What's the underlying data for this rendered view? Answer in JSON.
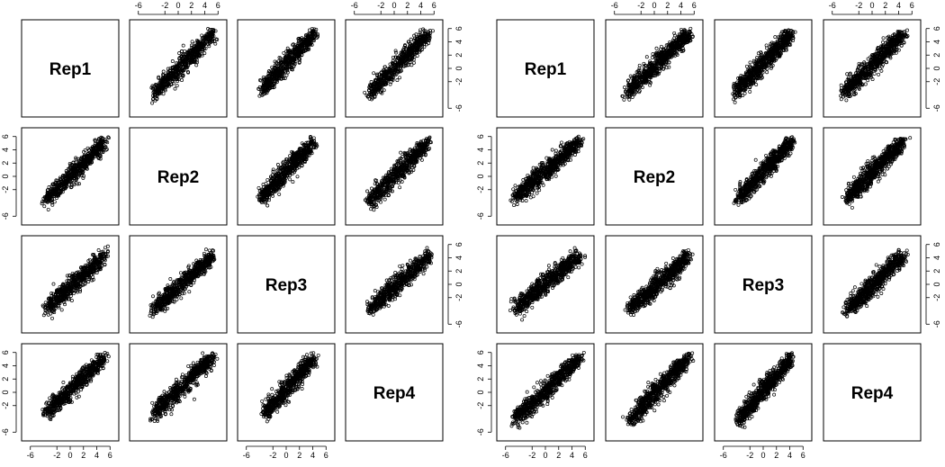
{
  "chart_data": [
    {
      "type": "scatter",
      "title": "",
      "panel_layout": "pairs-matrix",
      "variables": [
        "Rep1",
        "Rep2",
        "Rep3",
        "Rep4"
      ],
      "xlim": [
        -6,
        6
      ],
      "ylim": [
        -6,
        6
      ],
      "tick_values": [
        -6,
        -2,
        0,
        2,
        4,
        6
      ],
      "tick_labels": [
        "-6",
        "-2",
        "0",
        "2",
        "4",
        "6"
      ],
      "grid": false,
      "legend": "none",
      "point_color": "#000000",
      "pairs": [
        {
          "row": "Rep1",
          "col": "Rep2",
          "trend": {
            "x": [
              -4,
              5.5
            ],
            "y": [
              -4,
              5.5
            ]
          },
          "points": 650
        },
        {
          "row": "Rep1",
          "col": "Rep3",
          "trend": {
            "x": [
              -4,
              4.5
            ],
            "y": [
              -3.5,
              5.5
            ]
          },
          "points": 650
        },
        {
          "row": "Rep1",
          "col": "Rep4",
          "trend": {
            "x": [
              -4,
              5.5
            ],
            "y": [
              -4,
              5.5
            ]
          },
          "points": 650
        },
        {
          "row": "Rep2",
          "col": "Rep1",
          "trend": {
            "x": [
              -4,
              5.5
            ],
            "y": [
              -4,
              5.5
            ]
          },
          "points": 650
        },
        {
          "row": "Rep2",
          "col": "Rep3",
          "trend": {
            "x": [
              -4,
              4.5
            ],
            "y": [
              -3.5,
              5.5
            ]
          },
          "points": 650
        },
        {
          "row": "Rep2",
          "col": "Rep4",
          "trend": {
            "x": [
              -4,
              5.5
            ],
            "y": [
              -4,
              5.5
            ]
          },
          "points": 650
        },
        {
          "row": "Rep3",
          "col": "Rep1",
          "trend": {
            "x": [
              -4,
              5.5
            ],
            "y": [
              -4,
              4.5
            ]
          },
          "points": 650
        },
        {
          "row": "Rep3",
          "col": "Rep2",
          "trend": {
            "x": [
              -4,
              5.5
            ],
            "y": [
              -4,
              4.5
            ]
          },
          "points": 650
        },
        {
          "row": "Rep3",
          "col": "Rep4",
          "trend": {
            "x": [
              -4,
              5.5
            ],
            "y": [
              -4,
              4.5
            ]
          },
          "points": 650
        },
        {
          "row": "Rep4",
          "col": "Rep1",
          "trend": {
            "x": [
              -4,
              5.5
            ],
            "y": [
              -3.5,
              5.5
            ]
          },
          "points": 650
        },
        {
          "row": "Rep4",
          "col": "Rep2",
          "trend": {
            "x": [
              -4,
              5.5
            ],
            "y": [
              -3.5,
              5.5
            ]
          },
          "points": 650
        },
        {
          "row": "Rep4",
          "col": "Rep3",
          "trend": {
            "x": [
              -3.5,
              4.5
            ],
            "y": [
              -3.5,
              5.5
            ]
          },
          "points": 650
        }
      ]
    },
    {
      "type": "scatter",
      "title": "",
      "panel_layout": "pairs-matrix",
      "variables": [
        "Rep1",
        "Rep2",
        "Rep3",
        "Rep4"
      ],
      "xlim": [
        -6,
        6
      ],
      "ylim": [
        -6,
        6
      ],
      "tick_values": [
        -6,
        -2,
        0,
        2,
        4,
        6
      ],
      "tick_labels": [
        "-6",
        "-2",
        "0",
        "2",
        "4",
        "6"
      ],
      "grid": false,
      "legend": "none",
      "point_color": "#000000",
      "pairs": [
        {
          "row": "Rep1",
          "col": "Rep2",
          "trend": {
            "x": [
              -4.5,
              5.5
            ],
            "y": [
              -4,
              5.5
            ]
          },
          "points": 750
        },
        {
          "row": "Rep1",
          "col": "Rep3",
          "trend": {
            "x": [
              -4.5,
              4.5
            ],
            "y": [
              -4,
              5.5
            ]
          },
          "points": 750
        },
        {
          "row": "Rep1",
          "col": "Rep4",
          "trend": {
            "x": [
              -4.5,
              5
            ],
            "y": [
              -4,
              5.5
            ]
          },
          "points": 750
        },
        {
          "row": "Rep2",
          "col": "Rep1",
          "trend": {
            "x": [
              -5,
              5.5
            ],
            "y": [
              -3.5,
              5.5
            ]
          },
          "points": 750
        },
        {
          "row": "Rep2",
          "col": "Rep3",
          "trend": {
            "x": [
              -4,
              4.5
            ],
            "y": [
              -3.5,
              5.5
            ]
          },
          "points": 750
        },
        {
          "row": "Rep2",
          "col": "Rep4",
          "trend": {
            "x": [
              -4,
              5
            ],
            "y": [
              -3.5,
              5.5
            ]
          },
          "points": 750
        },
        {
          "row": "Rep3",
          "col": "Rep1",
          "trend": {
            "x": [
              -5,
              5.5
            ],
            "y": [
              -4,
              4.5
            ]
          },
          "points": 750
        },
        {
          "row": "Rep3",
          "col": "Rep2",
          "trend": {
            "x": [
              -4,
              5.5
            ],
            "y": [
              -4,
              4.5
            ]
          },
          "points": 750
        },
        {
          "row": "Rep3",
          "col": "Rep4",
          "trend": {
            "x": [
              -4,
              5
            ],
            "y": [
              -4,
              4.5
            ]
          },
          "points": 750
        },
        {
          "row": "Rep4",
          "col": "Rep1",
          "trend": {
            "x": [
              -5,
              5.5
            ],
            "y": [
              -4.5,
              5.5
            ]
          },
          "points": 750
        },
        {
          "row": "Rep4",
          "col": "Rep2",
          "trend": {
            "x": [
              -4,
              5.5
            ],
            "y": [
              -4.5,
              5.5
            ]
          },
          "points": 750
        },
        {
          "row": "Rep4",
          "col": "Rep3",
          "trend": {
            "x": [
              -4,
              4.5
            ],
            "y": [
              -4.5,
              5.5
            ]
          },
          "points": 750
        }
      ]
    }
  ]
}
